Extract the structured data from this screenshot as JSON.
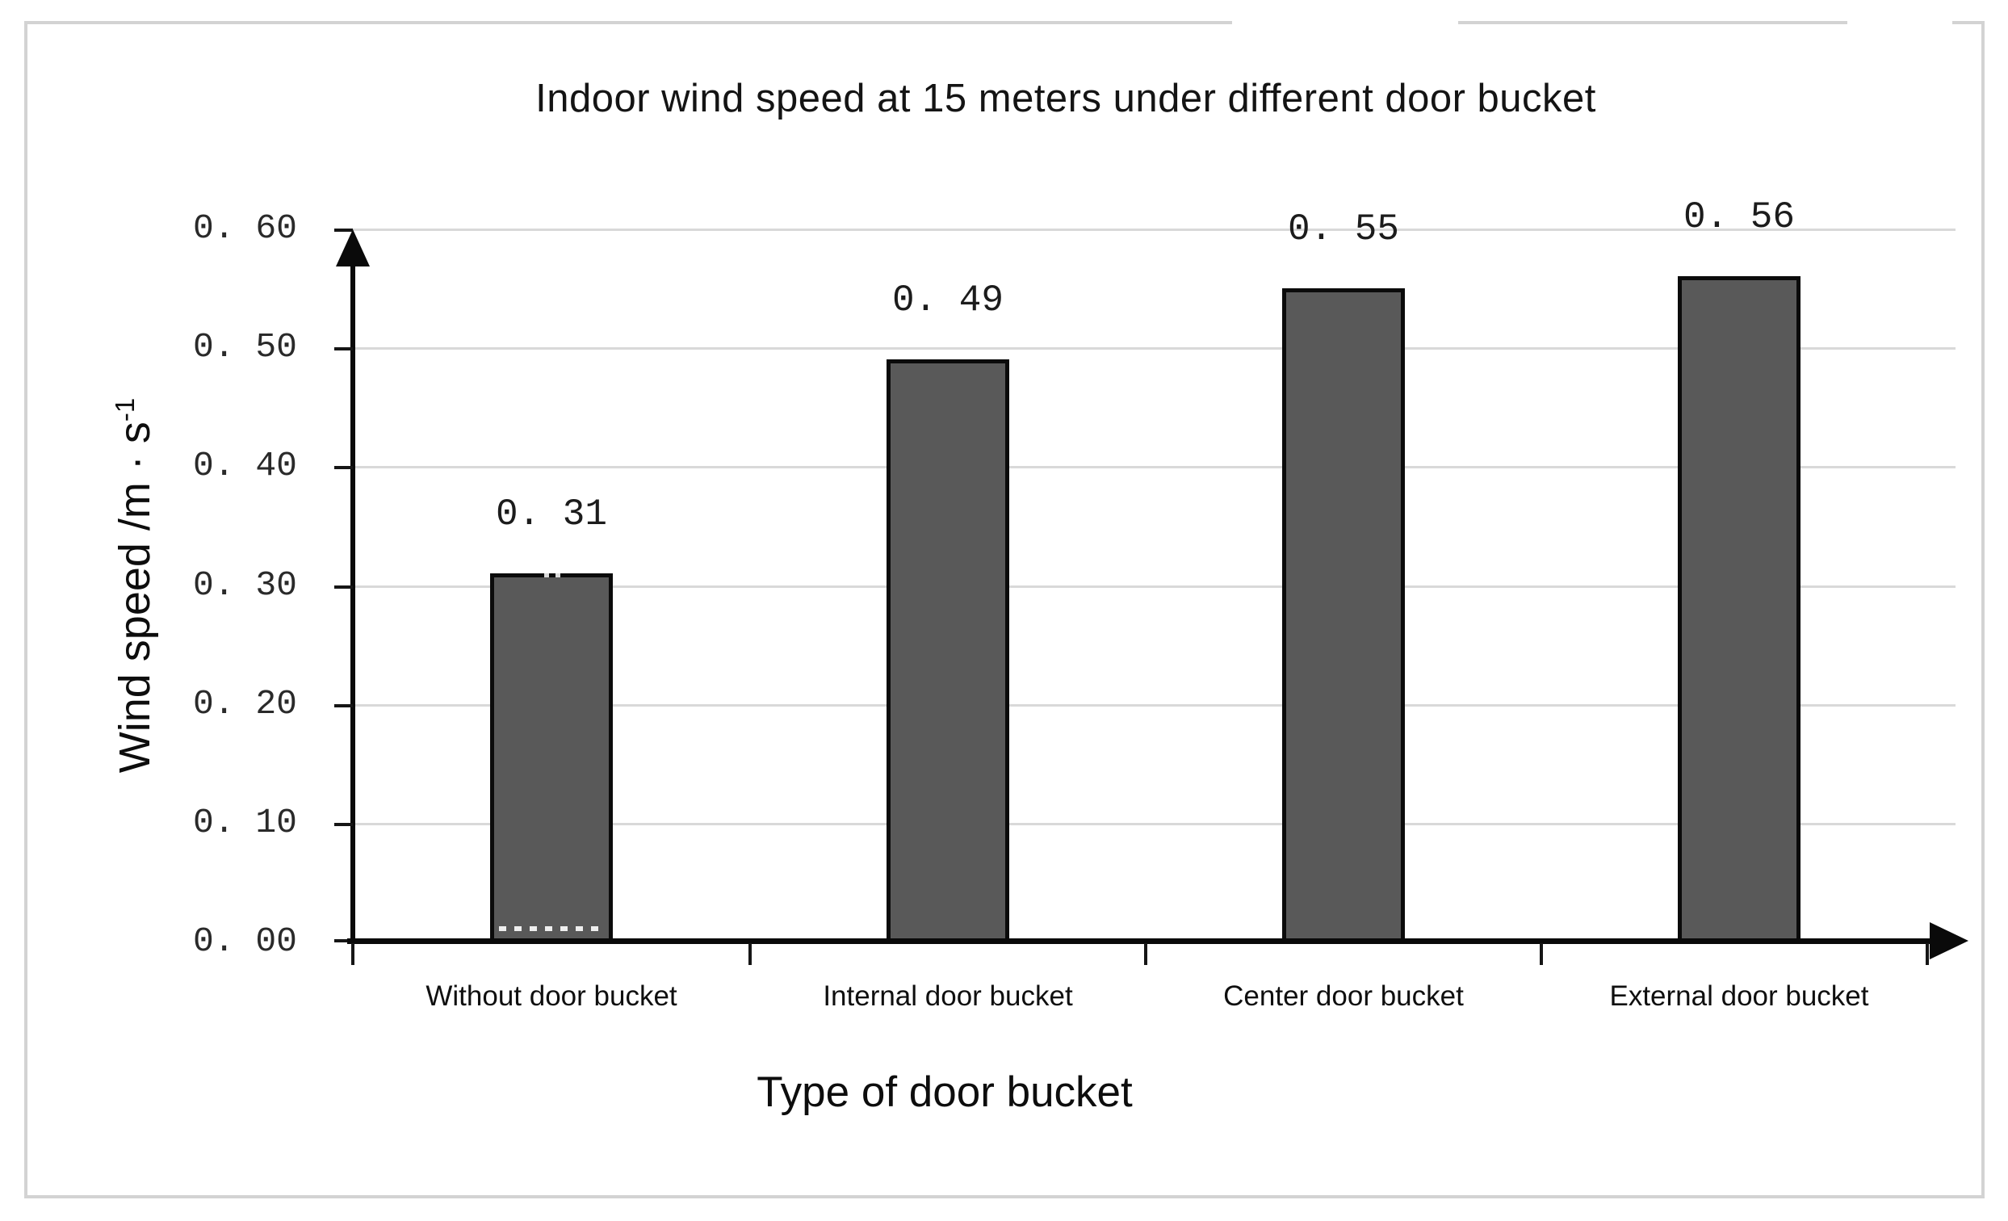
{
  "chart_data": {
    "type": "bar",
    "title": "Indoor wind speed at 15 meters under different door bucket",
    "categories": [
      "Without door bucket",
      "Internal door bucket",
      "Center door bucket",
      "External door bucket"
    ],
    "values": [
      0.31,
      0.49,
      0.55,
      0.56
    ],
    "value_labels": [
      "0. 31",
      "0. 49",
      "0. 55",
      "0. 56"
    ],
    "xlabel": "Type of door bucket",
    "ylabel": "Wind speed /m · s⁻¹",
    "ylabel_main": "Wind speed /m · s",
    "ylabel_sup": "-1",
    "ylim": [
      0.0,
      0.6
    ],
    "ytick_step": 0.1,
    "ytick_labels": [
      "0. 60",
      "0. 50",
      "0. 40",
      "0. 30",
      "0. 20",
      "0. 10",
      "0. 00"
    ],
    "grid": true,
    "legend_position": "none",
    "axis_arrows": true,
    "colors": {
      "bar_fill": "#595959",
      "bar_border": "#0b0b0b",
      "gridline": "#d9d9d9",
      "axis": "#0a0a0a",
      "frame_border": "#d3d3d3",
      "background": "#ffffff",
      "text": "#141414"
    }
  }
}
